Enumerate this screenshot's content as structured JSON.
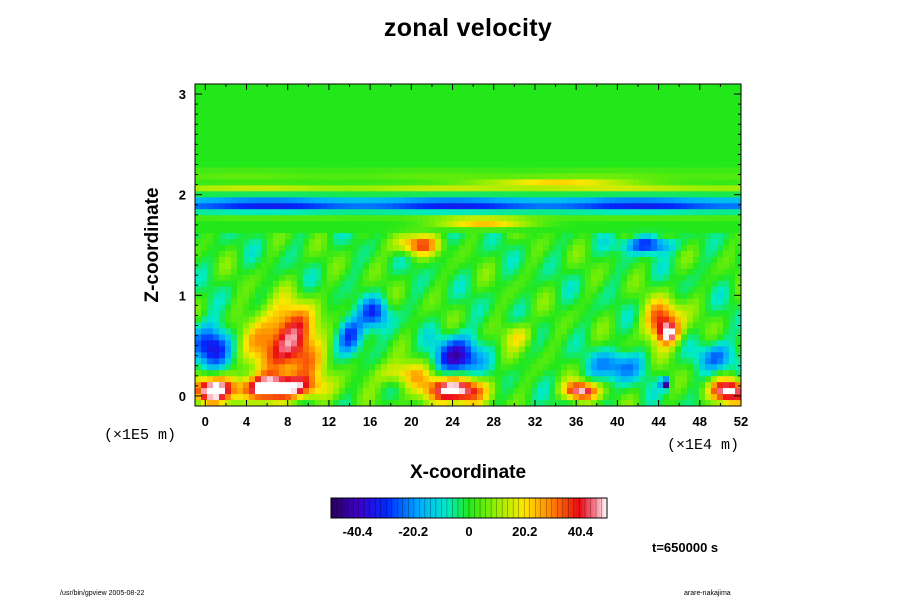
{
  "chart_data": {
    "type": "heatmap",
    "title": "zonal velocity",
    "xlabel": "X-coordinate",
    "ylabel": "Z-coordinate",
    "x_scale_label": "(×1E4 m)",
    "z_scale_label": "(×1E5 m)",
    "xlim": [
      -1,
      52
    ],
    "zlim": [
      -0.1,
      3.1
    ],
    "x_ticks": [
      "0",
      "4",
      "8",
      "12",
      "16",
      "20",
      "24",
      "28",
      "32",
      "36",
      "40",
      "44",
      "48",
      "52"
    ],
    "z_ticks": [
      "0",
      "1",
      "2",
      "3"
    ],
    "colorbar": {
      "range": [
        -50,
        50
      ],
      "tick_values": [
        -40.4,
        -20.2,
        0,
        20.2,
        40.4
      ],
      "tick_labels": [
        "-40.4",
        "-20.2",
        "0",
        "20.2",
        "40.4"
      ]
    },
    "colors": {
      "background_field": "#22e81a",
      "positive_extreme": "#ffffff",
      "negative_extreme": "#4b0082"
    },
    "features": [
      {
        "x": 7,
        "z": 0.08,
        "sx": 3.5,
        "sz": 0.12,
        "v": 60
      },
      {
        "x": 8,
        "z": 0.35,
        "sx": 4.5,
        "sz": 0.25,
        "v": 22
      },
      {
        "x": 0.5,
        "z": 0.05,
        "sx": 2.2,
        "sz": 0.13,
        "v": 52
      },
      {
        "x": 24,
        "z": 0.06,
        "sx": 3.0,
        "sz": 0.14,
        "v": 56
      },
      {
        "x": 36.5,
        "z": 0.05,
        "sx": 1.6,
        "sz": 0.09,
        "v": 48
      },
      {
        "x": 51,
        "z": 0.05,
        "sx": 2.0,
        "sz": 0.12,
        "v": 50
      },
      {
        "x": 8,
        "z": 0.65,
        "sx": 3.2,
        "sz": 0.28,
        "v": 38
      },
      {
        "x": 44.5,
        "z": 0.72,
        "sx": 1.8,
        "sz": 0.22,
        "v": 42
      },
      {
        "x": 45,
        "z": 0.62,
        "sx": 0.8,
        "sz": 0.08,
        "v": 30
      },
      {
        "x": 19,
        "z": 0.22,
        "sx": 2.5,
        "sz": 0.12,
        "v": 22
      },
      {
        "x": 30.5,
        "z": 0.6,
        "sx": 1.5,
        "sz": 0.13,
        "v": 18
      },
      {
        "x": 0.5,
        "z": 0.48,
        "sx": 1.8,
        "sz": 0.22,
        "v": -38
      },
      {
        "x": 14,
        "z": 0.6,
        "sx": 1.4,
        "sz": 0.2,
        "v": -35
      },
      {
        "x": 24.5,
        "z": 0.38,
        "sx": 2.0,
        "sz": 0.2,
        "v": -42
      },
      {
        "x": 16.5,
        "z": 0.82,
        "sx": 1.4,
        "sz": 0.15,
        "v": -25
      },
      {
        "x": 40,
        "z": 0.3,
        "sx": 2.3,
        "sz": 0.15,
        "v": -25
      },
      {
        "x": 44.6,
        "z": 0.12,
        "sx": 0.4,
        "sz": 0.05,
        "v": -50
      },
      {
        "x": 49.5,
        "z": 0.38,
        "sx": 1.8,
        "sz": 0.15,
        "v": -22
      },
      {
        "x": 20.5,
        "z": 1.5,
        "sx": 2.2,
        "sz": 0.1,
        "v": 32
      },
      {
        "x": 43,
        "z": 1.5,
        "sx": 2.5,
        "sz": 0.08,
        "v": -30
      },
      {
        "x": 27,
        "z": 1.72,
        "sx": 4.5,
        "sz": 0.05,
        "v": 25
      },
      {
        "x": 34,
        "z": 2.12,
        "sx": 7.0,
        "sz": 0.04,
        "v": 20
      }
    ],
    "bands": [
      {
        "z": 1.88,
        "w": 0.06,
        "v": -32
      },
      {
        "z": 1.97,
        "w": 0.05,
        "v": -15
      },
      {
        "z": 1.8,
        "w": 0.04,
        "v": 10
      },
      {
        "z": 2.05,
        "w": 0.05,
        "v": 16
      },
      {
        "z": 2.2,
        "w": 0.05,
        "v": 6
      }
    ]
  },
  "time_label": "t=650000 s",
  "footer_left": "/usr/bin/gpview 2005-08-22",
  "footer_right": "arare-nakajima"
}
